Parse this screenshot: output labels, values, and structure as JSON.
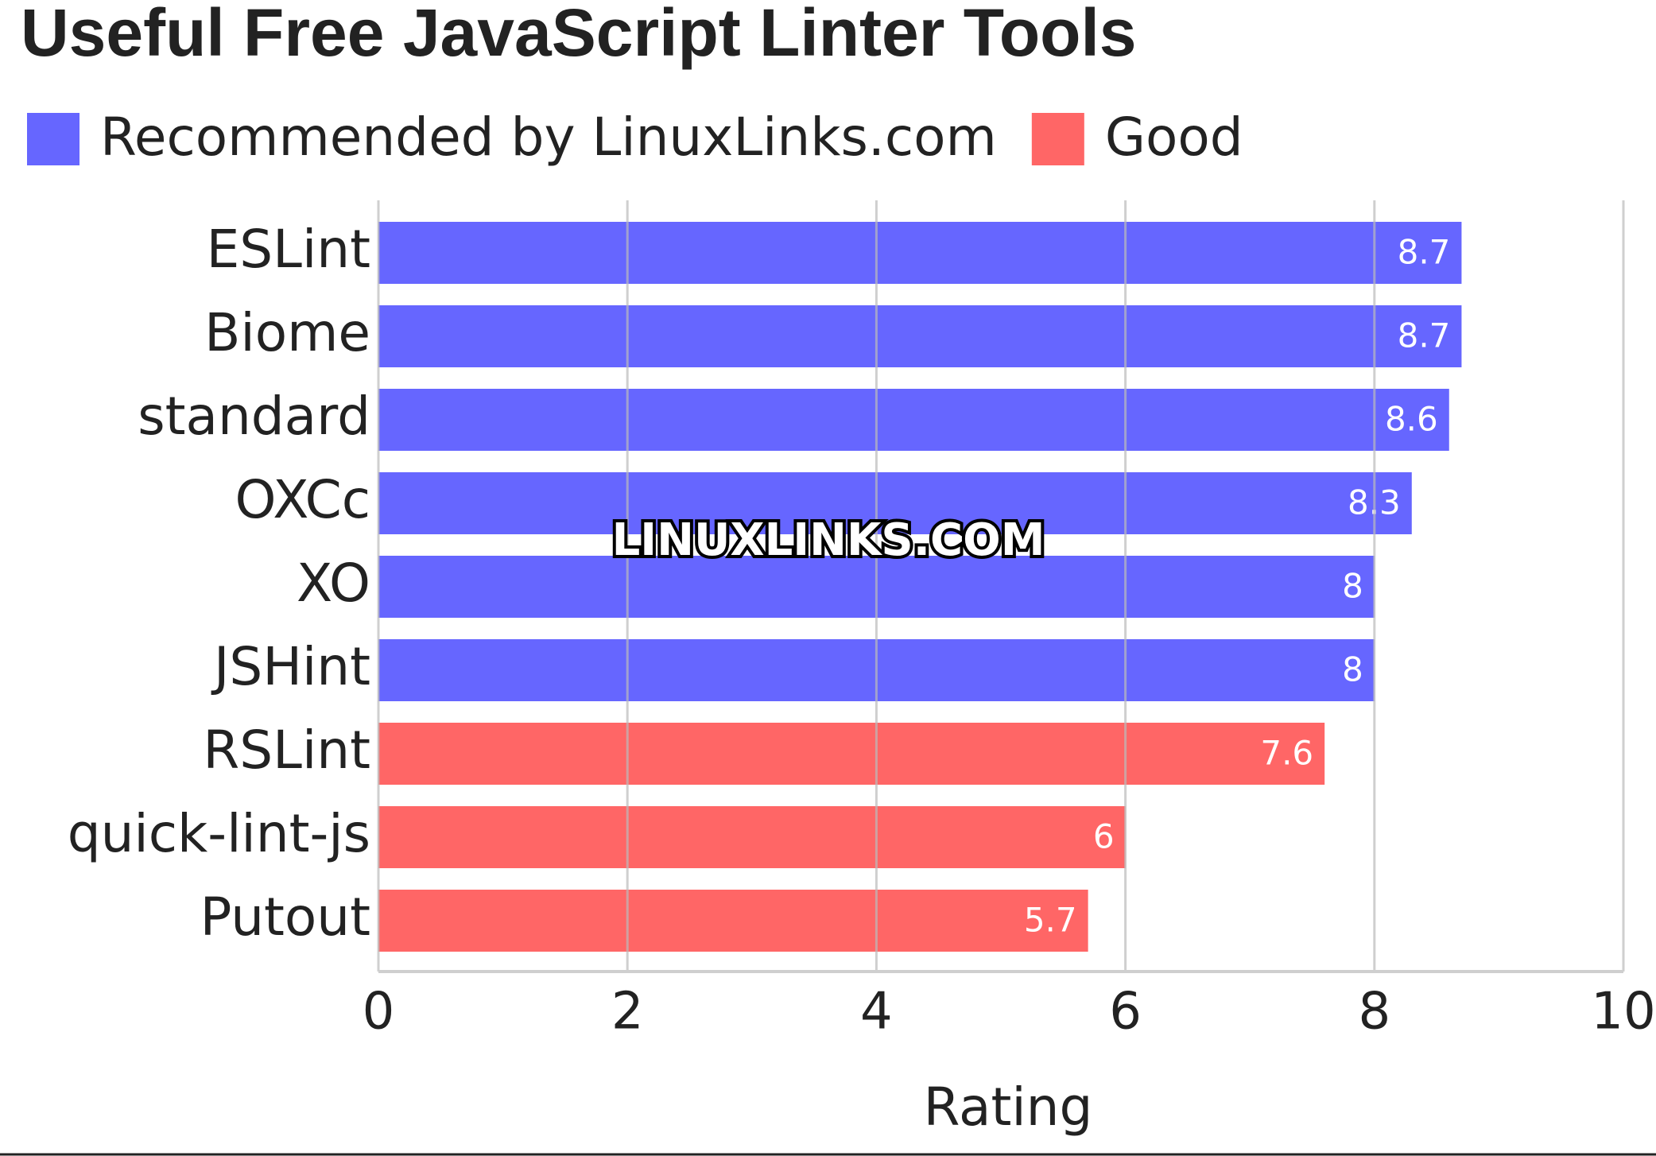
{
  "chart_data": {
    "type": "bar",
    "orientation": "horizontal",
    "title": "Useful Free JavaScript Linter Tools",
    "categories": [
      "ESLint",
      "Biome",
      "standard",
      "OXCc",
      "XO",
      "JSHint",
      "RSLint",
      "quick-lint-js",
      "Putout"
    ],
    "series": [
      {
        "name": "Recommended by LinuxLinks.com",
        "color": "#6666ff",
        "values": [
          8.7,
          8.7,
          8.6,
          8.3,
          8,
          8,
          null,
          null,
          null
        ]
      },
      {
        "name": "Good",
        "color": "#ff6666",
        "values": [
          null,
          null,
          null,
          null,
          null,
          null,
          7.6,
          6,
          5.7
        ]
      }
    ],
    "xlabel": "Rating",
    "xlim": [
      0,
      10
    ],
    "xticks": [
      0,
      2,
      4,
      6,
      8,
      10
    ],
    "grid": true,
    "watermark": "LINUXLINKS.COM"
  }
}
